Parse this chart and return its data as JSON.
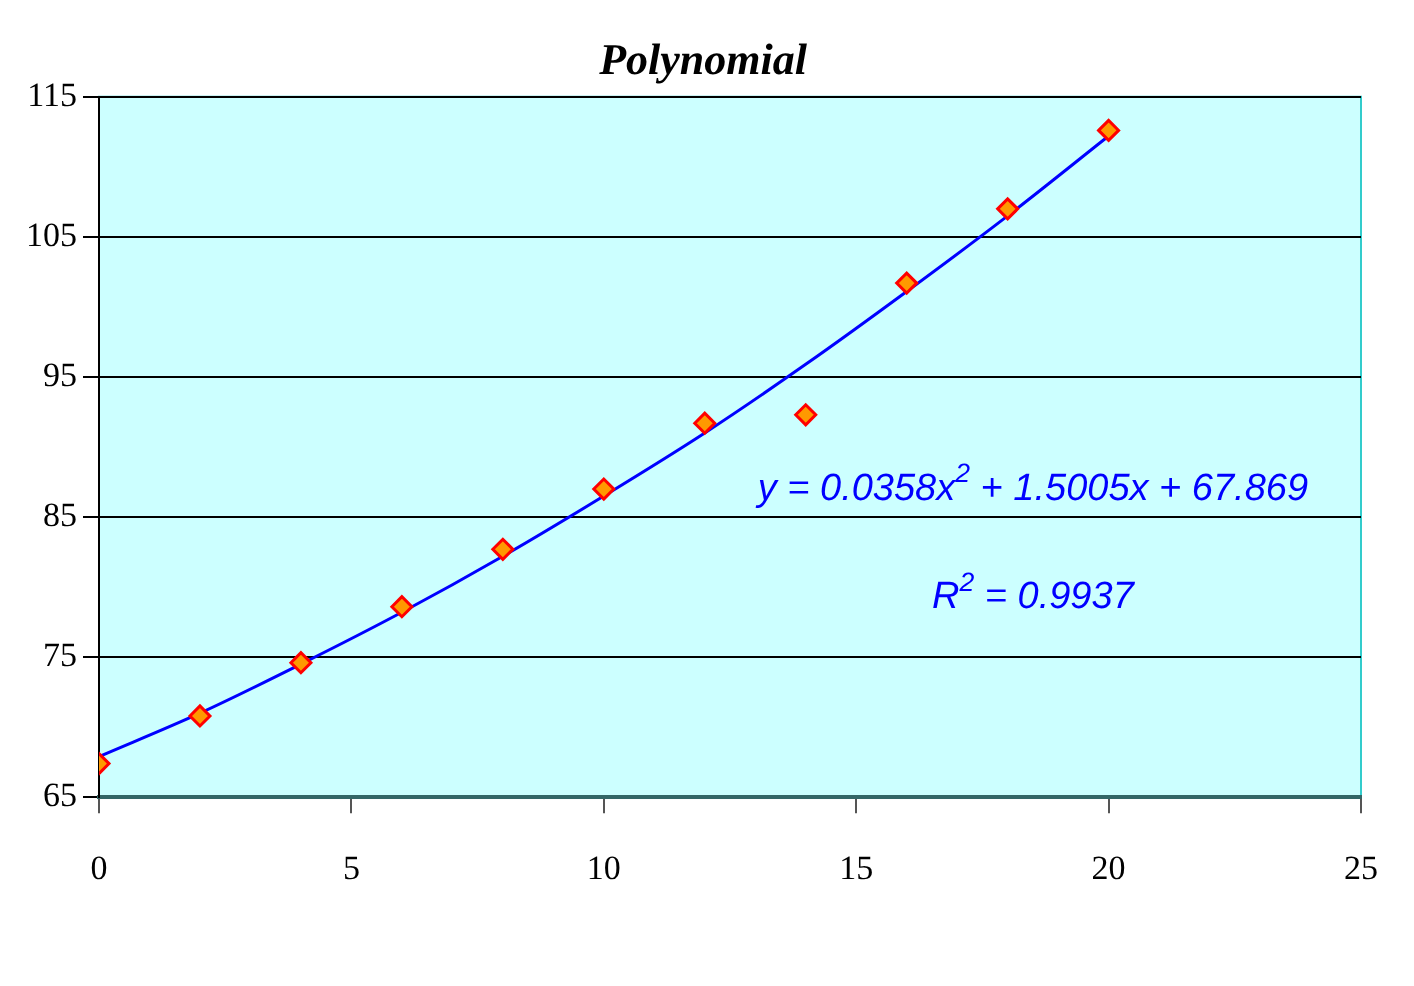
{
  "chart_data": {
    "type": "scatter",
    "title": "Polynomial",
    "series": [
      {
        "type": "scatter",
        "color": "#ff9900",
        "x": [
          0,
          2,
          4,
          6,
          8,
          10,
          12,
          14,
          16,
          18,
          20
        ],
        "values": [
          67.4,
          70.8,
          74.6,
          78.6,
          82.7,
          87.0,
          91.7,
          92.3,
          101.7,
          107.0,
          112.6
        ]
      },
      {
        "type": "line",
        "color": "#0000ff",
        "marker": "none",
        "x": [
          0,
          2,
          4,
          6,
          8,
          10,
          12,
          14,
          16,
          18,
          20
        ],
        "values": [
          67.9,
          71.0,
          74.5,
          78.2,
          82.2,
          86.5,
          91.0,
          95.9,
          101.1,
          106.5,
          112.2
        ]
      }
    ],
    "marker": "diamond",
    "xlim": [
      0,
      25
    ],
    "xticks": [
      0,
      5,
      10,
      15,
      20,
      25
    ],
    "ylim": [
      65,
      115
    ],
    "yticks": [
      65,
      75,
      85,
      95,
      105,
      115
    ],
    "grid": "y",
    "legend": false,
    "annotations": [
      "y = 0.0358x$^{2}$ + 1.5005x + 67.869",
      "R$^{2}$ = 0.9937"
    ]
  }
}
